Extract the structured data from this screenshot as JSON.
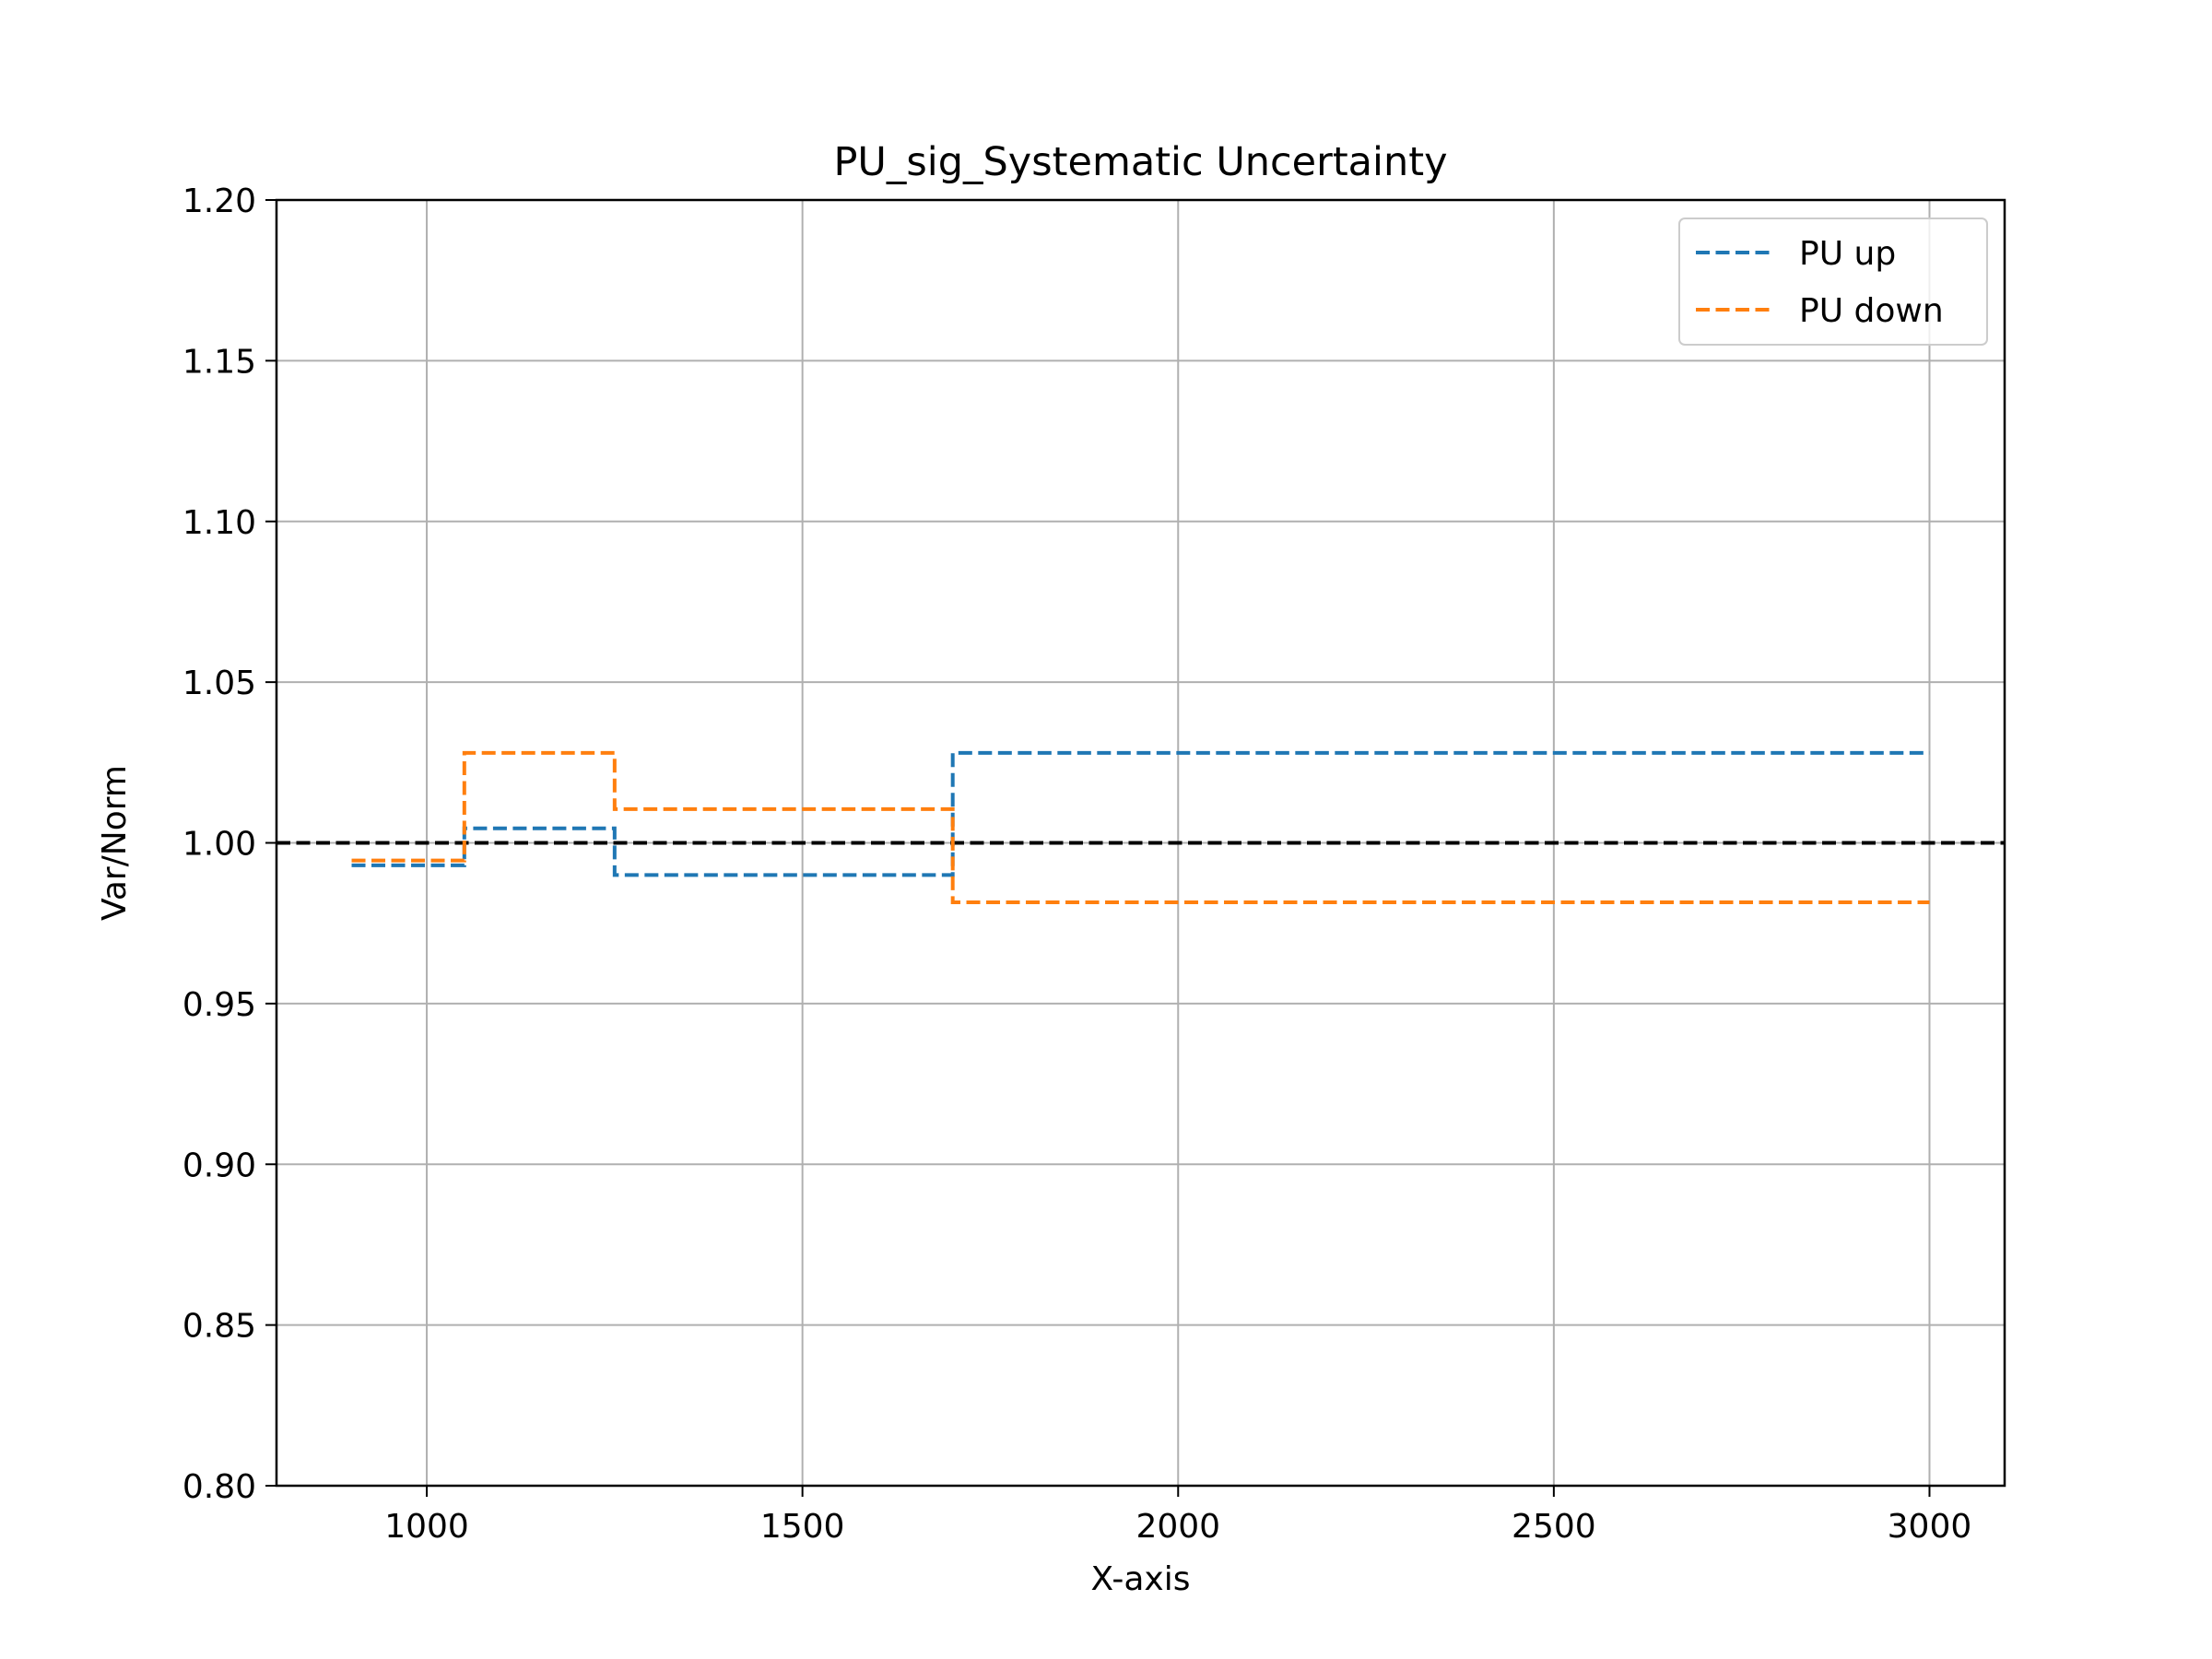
{
  "chart_data": {
    "type": "line",
    "title": "PU_sig_Systematic Uncertainty",
    "xlabel": "X-axis",
    "ylabel": "Var/Norm",
    "xlim": [
      800,
      3100
    ],
    "ylim": [
      0.8,
      1.2
    ],
    "xticks": [
      1000,
      1500,
      2000,
      2500,
      3000
    ],
    "yticks": [
      0.8,
      0.85,
      0.9,
      0.95,
      1.0,
      1.05,
      1.1,
      1.15,
      1.2
    ],
    "ytick_labels": [
      "0.80",
      "0.85",
      "0.90",
      "0.95",
      "1.00",
      "1.05",
      "1.10",
      "1.15",
      "1.20"
    ],
    "grid": true,
    "legend_position": "top-right",
    "reference_line": {
      "y": 1.0,
      "style": "dashed",
      "color": "#000000"
    },
    "series": [
      {
        "name": "PU up",
        "color": "#1f77b4",
        "style": "dashed-step",
        "x": [
          900,
          1050,
          1250,
          1700,
          3000
        ],
        "values": [
          0.993,
          1.0045,
          0.99,
          1.028,
          1.028
        ]
      },
      {
        "name": "PU down",
        "color": "#ff7f0e",
        "style": "dashed-step",
        "x": [
          900,
          1050,
          1250,
          1700,
          3000
        ],
        "values": [
          0.9945,
          1.028,
          1.0105,
          0.9815,
          0.9815
        ]
      }
    ]
  }
}
